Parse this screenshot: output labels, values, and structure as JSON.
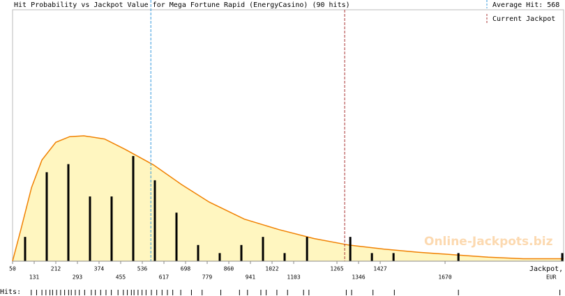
{
  "chart_data": {
    "type": "bar",
    "title": "Hit Probability vs Jackpot Value for Mega Fortune Rapid (EnergyCasino) (90 hits)",
    "x_label": "Jackpot,",
    "x_unit": "EUR",
    "watermark": "Online-Jackpots.biz",
    "average_text": "Average Hit: 568",
    "average_hit": 568,
    "average_color": "#3399dd",
    "jackpot_text": "Current Jackpot",
    "current_jackpot": 1294,
    "jackpot_color": "#aa3333",
    "hits_label": "Hits:",
    "x": [
      97,
      178,
      259,
      340,
      421,
      502,
      583,
      664,
      745,
      826,
      907,
      988,
      1069,
      1153,
      1315,
      1396,
      1477,
      1720,
      2109
    ],
    "values": [
      3,
      11,
      12,
      8,
      8,
      13,
      10,
      6,
      2,
      1,
      2,
      3,
      1,
      3,
      3,
      1,
      1,
      1,
      1
    ],
    "color": "#000000",
    "curve": {
      "color": "#f08000",
      "fill": "#fff6c0",
      "x": [
        50,
        81,
        121,
        160,
        212,
        264,
        317,
        395,
        473,
        578,
        682,
        787,
        918,
        1048,
        1179,
        1309,
        1440,
        1571,
        1701,
        1832,
        1963,
        2114
      ],
      "values": [
        0,
        3.9,
        9.1,
        12.5,
        14.7,
        15.4,
        15.5,
        15.1,
        13.8,
        11.9,
        9.5,
        7.3,
        5.2,
        3.9,
        2.8,
        2.0,
        1.5,
        1.1,
        0.8,
        0.5,
        0.3,
        0.3
      ]
    },
    "hits": [
      120,
      140,
      160,
      175,
      190,
      200,
      215,
      230,
      245,
      260,
      270,
      285,
      300,
      320,
      345,
      360,
      380,
      400,
      420,
      445,
      465,
      480,
      495,
      505,
      520,
      535,
      550,
      570,
      590,
      610,
      630,
      650,
      680,
      720,
      760,
      830,
      900,
      930,
      980,
      1000,
      1040,
      1080,
      1140,
      1160,
      1300,
      1320,
      1400,
      1480,
      1720,
      2100
    ],
    "xlim": [
      50,
      2114
    ],
    "ylim": [
      0,
      31
    ],
    "xticks": [
      50,
      131,
      212,
      293,
      374,
      455,
      536,
      617,
      698,
      779,
      860,
      941,
      1022,
      1103,
      1265,
      1346,
      1427,
      1670
    ]
  }
}
